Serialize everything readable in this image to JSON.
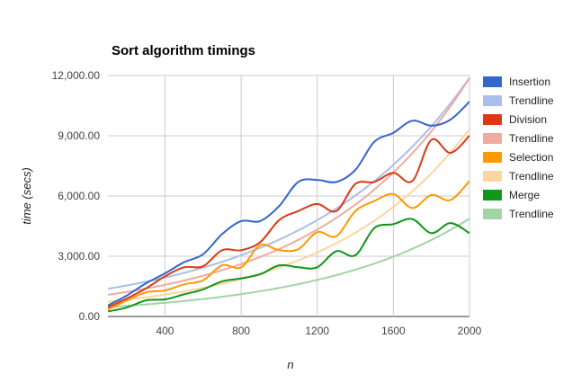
{
  "chart_data": {
    "type": "line",
    "title": "Sort algorithm timings",
    "xlabel": "n",
    "ylabel": "time (secs)",
    "xlim": [
      100,
      2000
    ],
    "ylim": [
      0,
      12000
    ],
    "x_ticks": [
      400,
      800,
      1200,
      1600,
      2000
    ],
    "y_ticks": [
      0,
      3000,
      6000,
      9000,
      12000
    ],
    "x_tick_labels": [
      "400",
      "800",
      "1200",
      "1600",
      "2000"
    ],
    "y_tick_labels": [
      "0.00",
      "3,000.00",
      "6,000.00",
      "9,000.00",
      "12,000.00"
    ],
    "grid": true,
    "legend_position": "right",
    "x": [
      100,
      200,
      300,
      400,
      500,
      600,
      700,
      800,
      900,
      1000,
      1100,
      1200,
      1300,
      1400,
      1500,
      1600,
      1700,
      1800,
      1900,
      2000
    ],
    "series": [
      {
        "name": "Insertion",
        "color": "#3366cc",
        "values": [
          550,
          1050,
          1650,
          2150,
          2700,
          3100,
          4100,
          4750,
          4750,
          5500,
          6700,
          6800,
          6700,
          7300,
          8700,
          9150,
          9750,
          9500,
          9800,
          10700
        ],
        "trendline": {
          "name": "Trendline",
          "color": "#a9bfeb",
          "fit": "exponential",
          "start": 1380,
          "growth": 1.12
        }
      },
      {
        "name": "Division",
        "color": "#dc3912",
        "values": [
          450,
          900,
          1400,
          2000,
          2450,
          2500,
          3300,
          3300,
          3700,
          4800,
          5250,
          5600,
          5250,
          6600,
          6700,
          7150,
          6750,
          8800,
          8150,
          9000
        ],
        "trendline": {
          "name": "Trendline",
          "color": "#f0aba0",
          "fit": "exponential",
          "start": 1080,
          "growth": 1.1345
        }
      },
      {
        "name": "Selection",
        "color": "#ff9900",
        "values": [
          350,
          800,
          1200,
          1300,
          1600,
          1800,
          2550,
          2450,
          3550,
          3300,
          3350,
          4200,
          4000,
          5250,
          5750,
          6100,
          5400,
          6050,
          5800,
          6750
        ],
        "trendline": {
          "name": "Trendline",
          "color": "#fdd59f",
          "fit": "exponential",
          "start": 730,
          "growth": 1.1435
        }
      },
      {
        "name": "Merge",
        "color": "#109618",
        "values": [
          250,
          450,
          800,
          850,
          1100,
          1350,
          1750,
          1900,
          2100,
          2550,
          2450,
          2450,
          3250,
          3050,
          4400,
          4600,
          4850,
          4150,
          4650,
          4150
        ],
        "trendline": {
          "name": "Trendline",
          "color": "#a2d4a4",
          "fit": "exponential",
          "start": 470,
          "growth": 1.131
        }
      }
    ]
  }
}
